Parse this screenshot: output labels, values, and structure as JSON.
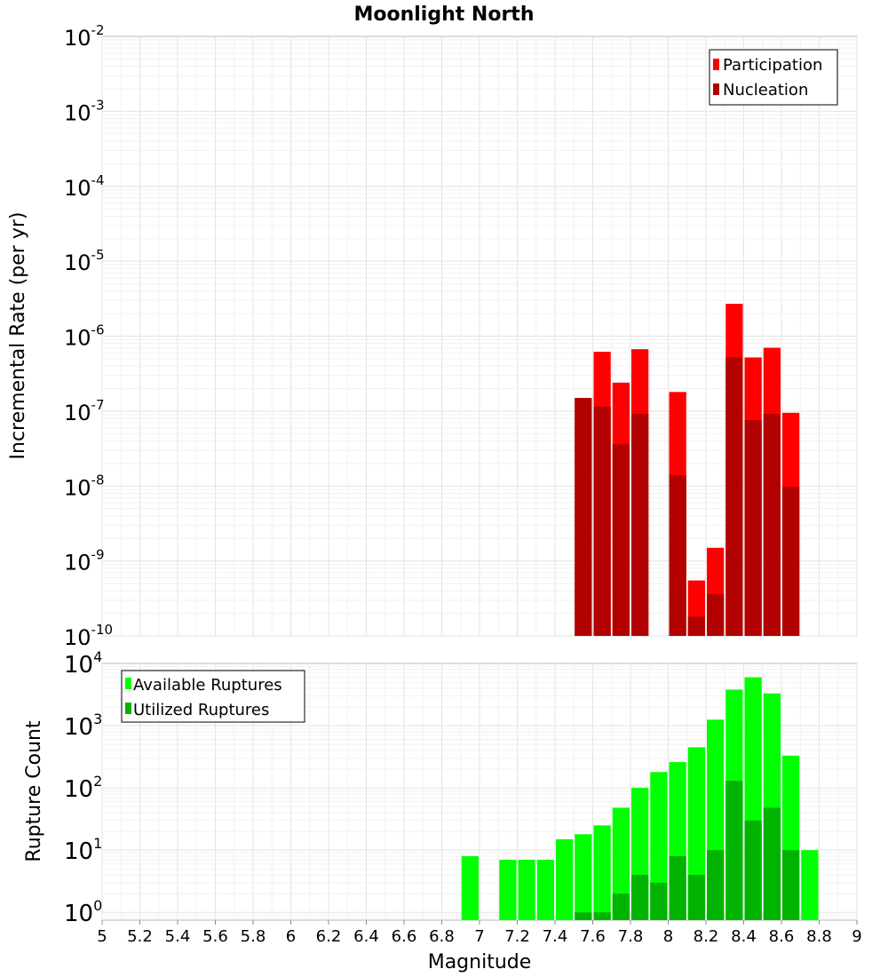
{
  "title": "Moonlight North",
  "chart_data": [
    {
      "type": "bar",
      "title": "Moonlight North",
      "ylabel": "Incremental Rate (per yr)",
      "xlabel": "",
      "xlim": [
        5,
        9
      ],
      "ylim": [
        1e-10,
        0.01
      ],
      "yscale": "log",
      "grid": true,
      "legend_position": "top-right",
      "bar_width": 0.1,
      "colors": {
        "Participation": "#ff0000",
        "Nucleation": "#b30000"
      },
      "y_tick_exponents": [
        -2,
        -3,
        -4,
        -5,
        -6,
        -7,
        -8,
        -9,
        -10
      ],
      "categories": [
        7.55,
        7.65,
        7.75,
        7.85,
        8.05,
        8.15,
        8.25,
        8.35,
        8.45,
        8.55,
        8.65
      ],
      "series": [
        {
          "name": "Participation",
          "values": [
            1.5e-07,
            6.2e-07,
            2.4e-07,
            6.7e-07,
            1.8e-07,
            5.5e-10,
            1.5e-09,
            2.7e-06,
            5.2e-07,
            7e-07,
            9.5e-08
          ]
        },
        {
          "name": "Nucleation",
          "values": [
            1.5e-07,
            1.15e-07,
            3.6e-08,
            9.2e-08,
            1.4e-08,
            1.8e-10,
            3.6e-10,
            5.2e-07,
            7.6e-08,
            9.2e-08,
            9.8e-09
          ]
        }
      ]
    },
    {
      "type": "bar",
      "title": "",
      "ylabel": "Rupture Count",
      "xlabel": "Magnitude",
      "xlim": [
        5,
        9
      ],
      "ylim": [
        0.75,
        10000
      ],
      "yscale": "log",
      "grid": true,
      "legend_position": "top-left",
      "bar_width": 0.1,
      "colors": {
        "Available Ruptures": "#00ff00",
        "Utilized Ruptures": "#00b300"
      },
      "x_ticks": [
        "5",
        "5.2",
        "5.4",
        "5.6",
        "5.8",
        "6",
        "6.2",
        "6.4",
        "6.6",
        "6.8",
        "7",
        "7.2",
        "7.4",
        "7.6",
        "7.8",
        "8",
        "8.2",
        "8.4",
        "8.6",
        "8.8",
        "9"
      ],
      "y_tick_exponents": [
        4,
        3,
        2,
        1,
        0
      ],
      "categories": [
        6.95,
        7.15,
        7.25,
        7.35,
        7.45,
        7.55,
        7.65,
        7.75,
        7.85,
        7.95,
        8.05,
        8.15,
        8.25,
        8.35,
        8.45,
        8.55,
        8.65,
        8.75
      ],
      "series": [
        {
          "name": "Available Ruptures",
          "values": [
            8,
            7,
            7,
            7,
            15,
            18,
            25,
            48,
            100,
            180,
            260,
            450,
            1250,
            3800,
            6000,
            3300,
            330,
            10
          ]
        },
        {
          "name": "Utilized Ruptures",
          "values": [
            0,
            0,
            0,
            0,
            0,
            1,
            1,
            2,
            4,
            3,
            8,
            4,
            10,
            130,
            30,
            48,
            10,
            0
          ]
        }
      ]
    }
  ]
}
